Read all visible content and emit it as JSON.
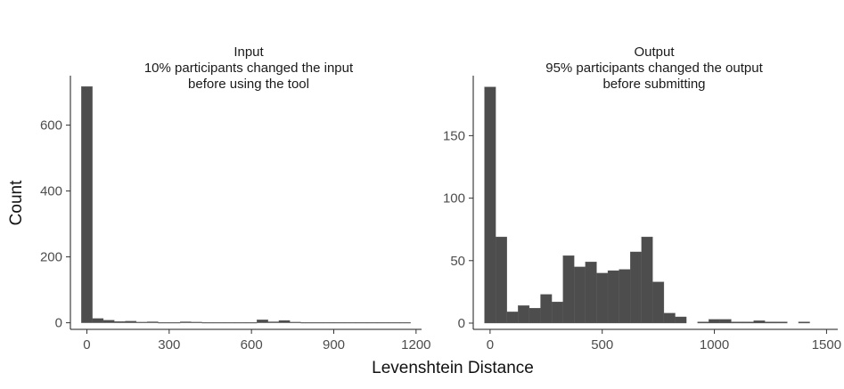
{
  "figure": {
    "ylabel": "Count",
    "xlabel": "Levenshtein Distance"
  },
  "chart_data": [
    {
      "type": "bar",
      "title": [
        "Input",
        "10% participants changed the input",
        "before using the tool"
      ],
      "xlabel": "Levenshtein Distance",
      "ylabel": "Count",
      "bin_width": 40,
      "xlim": [
        -60,
        1220
      ],
      "ylim": [
        -20,
        750
      ],
      "xticks": [
        0,
        300,
        600,
        900,
        1200
      ],
      "yticks": [
        0,
        200,
        400,
        600
      ],
      "bar_color": "#4d4d4d",
      "grid": false,
      "bins": [
        {
          "x0": -20,
          "x1": 20,
          "count": 717
        },
        {
          "x0": 20,
          "x1": 60,
          "count": 13
        },
        {
          "x0": 60,
          "x1": 100,
          "count": 8
        },
        {
          "x0": 100,
          "x1": 140,
          "count": 4
        },
        {
          "x0": 140,
          "x1": 180,
          "count": 5
        },
        {
          "x0": 180,
          "x1": 220,
          "count": 2
        },
        {
          "x0": 220,
          "x1": 260,
          "count": 3
        },
        {
          "x0": 260,
          "x1": 300,
          "count": 1
        },
        {
          "x0": 300,
          "x1": 340,
          "count": 1
        },
        {
          "x0": 340,
          "x1": 380,
          "count": 3
        },
        {
          "x0": 380,
          "x1": 420,
          "count": 2
        },
        {
          "x0": 420,
          "x1": 460,
          "count": 1
        },
        {
          "x0": 460,
          "x1": 500,
          "count": 1
        },
        {
          "x0": 500,
          "x1": 540,
          "count": 1
        },
        {
          "x0": 540,
          "x1": 580,
          "count": 1
        },
        {
          "x0": 580,
          "x1": 620,
          "count": 1
        },
        {
          "x0": 620,
          "x1": 660,
          "count": 9
        },
        {
          "x0": 660,
          "x1": 700,
          "count": 3
        },
        {
          "x0": 700,
          "x1": 740,
          "count": 7
        },
        {
          "x0": 740,
          "x1": 780,
          "count": 2
        },
        {
          "x0": 780,
          "x1": 820,
          "count": 1
        },
        {
          "x0": 820,
          "x1": 860,
          "count": 1
        },
        {
          "x0": 860,
          "x1": 900,
          "count": 1
        },
        {
          "x0": 900,
          "x1": 940,
          "count": 1
        },
        {
          "x0": 940,
          "x1": 980,
          "count": 1
        },
        {
          "x0": 980,
          "x1": 1020,
          "count": 1
        },
        {
          "x0": 1020,
          "x1": 1060,
          "count": 1
        },
        {
          "x0": 1060,
          "x1": 1100,
          "count": 1
        },
        {
          "x0": 1100,
          "x1": 1140,
          "count": 1
        },
        {
          "x0": 1140,
          "x1": 1180,
          "count": 1
        }
      ]
    },
    {
      "type": "bar",
      "title": [
        "Output",
        "95% participants changed the output",
        "before submitting"
      ],
      "xlabel": "Levenshtein Distance",
      "ylabel": "Count",
      "bin_width": 50,
      "xlim": [
        -75,
        1550
      ],
      "ylim": [
        -5,
        198
      ],
      "xticks": [
        0,
        500,
        1000,
        1500
      ],
      "yticks": [
        0,
        50,
        100,
        150
      ],
      "bar_color": "#4d4d4d",
      "grid": false,
      "bins": [
        {
          "x0": -25,
          "x1": 25,
          "count": 189
        },
        {
          "x0": 25,
          "x1": 75,
          "count": 69
        },
        {
          "x0": 75,
          "x1": 125,
          "count": 9
        },
        {
          "x0": 125,
          "x1": 175,
          "count": 14
        },
        {
          "x0": 175,
          "x1": 225,
          "count": 12
        },
        {
          "x0": 225,
          "x1": 275,
          "count": 23
        },
        {
          "x0": 275,
          "x1": 325,
          "count": 17
        },
        {
          "x0": 325,
          "x1": 375,
          "count": 54
        },
        {
          "x0": 375,
          "x1": 425,
          "count": 45
        },
        {
          "x0": 425,
          "x1": 475,
          "count": 49
        },
        {
          "x0": 475,
          "x1": 525,
          "count": 40
        },
        {
          "x0": 525,
          "x1": 575,
          "count": 42
        },
        {
          "x0": 575,
          "x1": 625,
          "count": 43
        },
        {
          "x0": 625,
          "x1": 675,
          "count": 57
        },
        {
          "x0": 675,
          "x1": 725,
          "count": 69
        },
        {
          "x0": 725,
          "x1": 775,
          "count": 33
        },
        {
          "x0": 775,
          "x1": 825,
          "count": 8
        },
        {
          "x0": 825,
          "x1": 875,
          "count": 5
        },
        {
          "x0": 875,
          "x1": 925,
          "count": 0
        },
        {
          "x0": 925,
          "x1": 975,
          "count": 1
        },
        {
          "x0": 975,
          "x1": 1025,
          "count": 3
        },
        {
          "x0": 1025,
          "x1": 1075,
          "count": 3
        },
        {
          "x0": 1075,
          "x1": 1125,
          "count": 1
        },
        {
          "x0": 1125,
          "x1": 1175,
          "count": 1
        },
        {
          "x0": 1175,
          "x1": 1225,
          "count": 2
        },
        {
          "x0": 1225,
          "x1": 1275,
          "count": 1
        },
        {
          "x0": 1275,
          "x1": 1325,
          "count": 1
        },
        {
          "x0": 1325,
          "x1": 1375,
          "count": 0
        },
        {
          "x0": 1375,
          "x1": 1425,
          "count": 1
        }
      ]
    }
  ]
}
